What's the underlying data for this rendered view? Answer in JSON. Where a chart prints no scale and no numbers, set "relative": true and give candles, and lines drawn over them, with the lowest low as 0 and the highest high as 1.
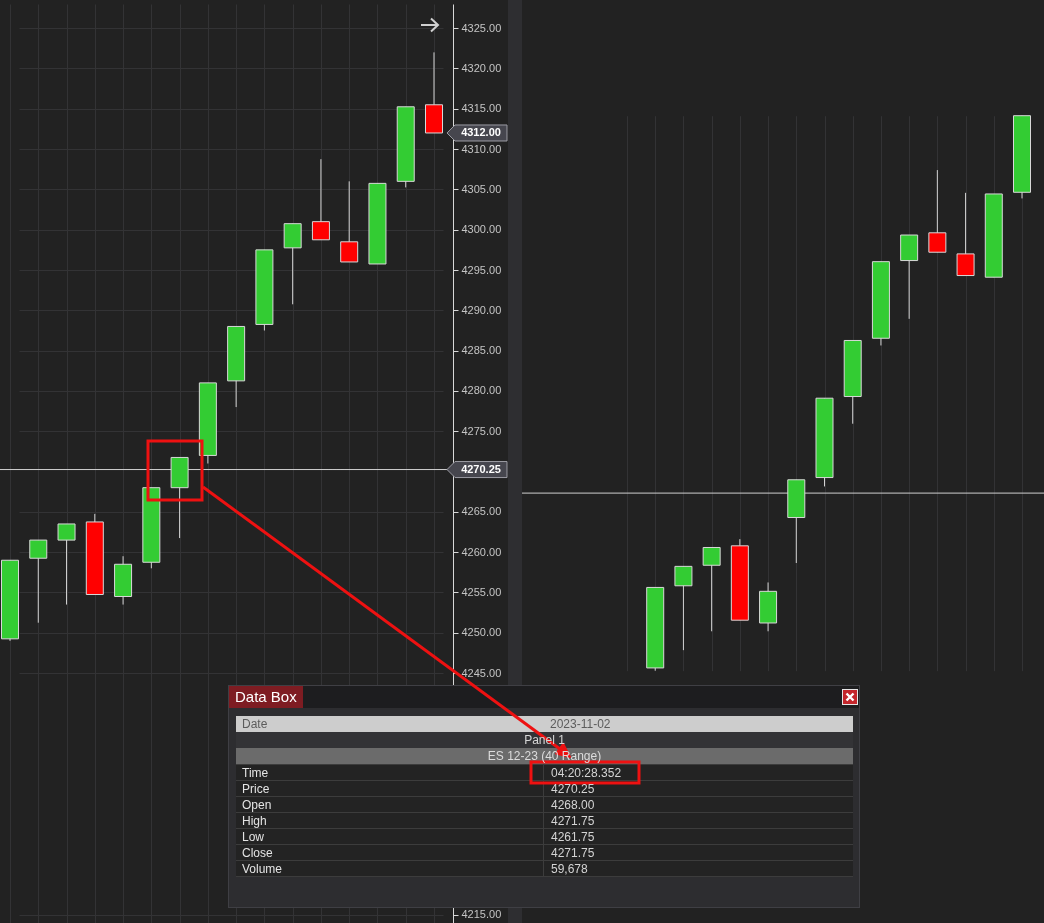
{
  "chart_data": [
    {
      "type": "candlestick",
      "categories": [
        null,
        null,
        null,
        null,
        null,
        null,
        null,
        null,
        null,
        null,
        null,
        null,
        null,
        null,
        null,
        null
      ],
      "ohlc": [
        [
          4249.25,
          4259,
          4249,
          4259
        ],
        [
          4259.25,
          4261.5,
          4251.25,
          4261.5
        ],
        [
          4261.5,
          4263.5,
          4253.5,
          4263.5
        ],
        [
          4263.75,
          4264.75,
          4254.75,
          4254.75
        ],
        [
          4254.5,
          4259.5,
          4253.5,
          4258.5
        ],
        [
          4258.75,
          4268,
          4258,
          4268
        ],
        [
          4268,
          4271.75,
          4261.75,
          4271.75
        ],
        [
          4272,
          4281,
          4271,
          4281
        ],
        [
          4281.25,
          4288,
          4278,
          4288
        ],
        [
          4288.25,
          4297.5,
          4287.5,
          4297.5
        ],
        [
          4297.75,
          4300.75,
          4290.75,
          4300.75
        ],
        [
          4301,
          4308.75,
          4298.75,
          4298.75
        ],
        [
          4298.5,
          4306,
          4296,
          4296
        ],
        [
          4295.75,
          4305.75,
          4295.75,
          4305.75
        ],
        [
          4306,
          4315.25,
          4305.25,
          4315.25
        ],
        [
          4315.5,
          4322,
          4312,
          4312
        ]
      ],
      "colors": [
        "#33cc33",
        "#33cc33",
        "#33cc33",
        "#ff0000",
        "#33cc33",
        "#33cc33",
        "#33cc33",
        "#33cc33",
        "#33cc33",
        "#33cc33",
        "#33cc33",
        "#ff0000",
        "#ff0000",
        "#33cc33",
        "#33cc33",
        "#ff0000"
      ],
      "ylim": [
        4214,
        4328
      ],
      "yticks": [
        {
          "value": 4215,
          "label": "4215.00"
        },
        {
          "value": 4245,
          "label": "4245.00"
        },
        {
          "value": 4250,
          "label": "4250.00"
        },
        {
          "value": 4255,
          "label": "4255.00"
        },
        {
          "value": 4260,
          "label": "4260.00"
        },
        {
          "value": 4265,
          "label": "4265.00"
        },
        {
          "value": 4275,
          "label": "4275.00"
        },
        {
          "value": 4280,
          "label": "4280.00"
        },
        {
          "value": 4285,
          "label": "4285.00"
        },
        {
          "value": 4290,
          "label": "4290.00"
        },
        {
          "value": 4295,
          "label": "4295.00"
        },
        {
          "value": 4300,
          "label": "4300.00"
        },
        {
          "value": 4305,
          "label": "4305.00"
        },
        {
          "value": 4310,
          "label": "4310.00"
        },
        {
          "value": 4315,
          "label": "4315.00"
        },
        {
          "value": 4320,
          "label": "4320.00"
        },
        {
          "value": 4325,
          "label": "4325.00"
        }
      ],
      "grid": true,
      "tick_labels": "y",
      "ref_lines": [
        {
          "axis": "y",
          "value": 4270.25,
          "label": "4270.25",
          "color": "#d0d0d0"
        }
      ],
      "annotations": [
        "4312.00"
      ]
    },
    {
      "type": "candlestick",
      "relative": true,
      "categories": [
        null,
        null,
        null,
        null,
        null,
        null,
        null,
        null,
        null,
        null,
        null,
        null,
        null,
        null,
        null
      ],
      "ohlc": [
        null,
        [
          0.005,
          0.15,
          0,
          0.15
        ],
        [
          0.153,
          0.188,
          0.037,
          0.188
        ],
        [
          0.19,
          0.222,
          0.071,
          0.222
        ],
        [
          0.225,
          0.237,
          0.091,
          0.091
        ],
        [
          0.086,
          0.159,
          0.071,
          0.143
        ],
        [
          0.276,
          0.344,
          0.194,
          0.344
        ],
        [
          0.348,
          0.491,
          0.332,
          0.491
        ],
        [
          0.494,
          0.595,
          0.445,
          0.595
        ],
        [
          0.599,
          0.737,
          0.586,
          0.737
        ],
        [
          0.739,
          0.785,
          0.634,
          0.785
        ],
        [
          0.789,
          0.902,
          0.754,
          0.754
        ],
        [
          0.751,
          0.861,
          0.712,
          0.712
        ],
        [
          0.709,
          0.859,
          0.709,
          0.859
        ],
        [
          0.862,
          1,
          0.851,
          1
        ]
      ],
      "colors": [
        null,
        "#33cc33",
        "#33cc33",
        "#33cc33",
        "#ff0000",
        "#33cc33",
        "#33cc33",
        "#33cc33",
        "#33cc33",
        "#33cc33",
        "#33cc33",
        "#ff0000",
        "#ff0000",
        "#33cc33",
        "#33cc33"
      ],
      "grid": "x",
      "ref_lines": [
        {
          "axis": "y",
          "value": 0.32,
          "color": "#d0d0d0"
        }
      ]
    },
    {
      "type": "other",
      "title": "Data Box",
      "annotations": [
        "Date",
        "2023-11-02",
        "Panel 1",
        "ES 12-23 (40 Range)",
        "Time",
        "04:20:28.352",
        "Price",
        "4270.25",
        "Open",
        "4268.00",
        "High",
        "4271.75",
        "Low",
        "4261.75",
        "Close",
        "4271.75",
        "Volume",
        "59,678"
      ]
    }
  ]
}
